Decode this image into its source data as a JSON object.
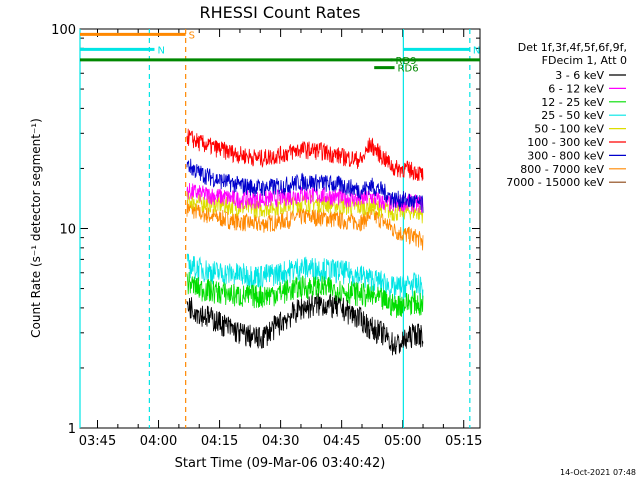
{
  "chart_data": {
    "type": "line",
    "title": "RHESSI Count Rates",
    "xlabel": "Start Time (09-Mar-06 03:40:42)",
    "ylabel": "Count Rate (s⁻¹ detector segment⁻¹)",
    "y_scale": "log",
    "ylim": [
      1,
      100
    ],
    "xlim": [
      "03:40:42",
      "05:19:00"
    ],
    "x_ticks": [
      "03:45",
      "04:00",
      "04:15",
      "04:30",
      "04:45",
      "05:00",
      "05:15"
    ],
    "y_ticks": [
      "1",
      "10",
      "100"
    ],
    "data_span": [
      "04:07:00",
      "05:06:00"
    ],
    "legend_header": [
      "Det 1f,3f,4f,5f,6f,9f,",
      "FDecim 1, Att 0"
    ],
    "series": [
      {
        "name": "3 - 6 keV",
        "color": "#000000",
        "x": [
          "04:07",
          "04:10",
          "04:15",
          "04:20",
          "04:25",
          "04:30",
          "04:35",
          "04:40",
          "04:45",
          "04:50",
          "04:52",
          "04:55",
          "04:58",
          "05:00",
          "05:03",
          "05:05"
        ],
        "y": [
          4.2,
          3.8,
          3.4,
          3.0,
          2.8,
          3.4,
          4.0,
          4.2,
          4.0,
          3.5,
          3.2,
          3.0,
          2.6,
          2.7,
          3.0,
          2.9
        ]
      },
      {
        "name": "6 - 12 keV",
        "color": "#ff00ff",
        "x": [
          "04:07",
          "04:10",
          "04:15",
          "04:20",
          "04:25",
          "04:30",
          "04:35",
          "04:40",
          "04:45",
          "04:50",
          "04:52",
          "04:55",
          "04:58",
          "05:00",
          "05:03",
          "05:05"
        ],
        "y": [
          15.5,
          15.0,
          14.5,
          14.0,
          14.0,
          14.3,
          14.8,
          14.7,
          14.3,
          14.0,
          14.5,
          13.6,
          13.2,
          13.5,
          13.4,
          13.2
        ]
      },
      {
        "name": "12 - 25 keV",
        "color": "#00dd00",
        "x": [
          "04:07",
          "04:10",
          "04:15",
          "04:20",
          "04:25",
          "04:30",
          "04:35",
          "04:40",
          "04:45",
          "04:50",
          "04:52",
          "04:55",
          "04:58",
          "05:00",
          "05:03",
          "05:05"
        ],
        "y": [
          5.4,
          5.0,
          4.8,
          4.6,
          4.6,
          4.8,
          5.1,
          5.1,
          4.9,
          4.7,
          4.6,
          4.4,
          4.1,
          4.2,
          4.3,
          4.1
        ]
      },
      {
        "name": "25 - 50 keV",
        "color": "#00e5e5",
        "x": [
          "04:07",
          "04:10",
          "04:15",
          "04:20",
          "04:25",
          "04:30",
          "04:35",
          "04:40",
          "04:45",
          "04:50",
          "04:52",
          "04:55",
          "04:58",
          "05:00",
          "05:03",
          "05:05"
        ],
        "y": [
          6.6,
          6.3,
          6.0,
          5.9,
          5.8,
          6.0,
          6.4,
          6.3,
          6.1,
          5.8,
          5.6,
          5.4,
          5.0,
          5.2,
          5.3,
          5.0
        ]
      },
      {
        "name": "50 - 100 keV",
        "color": "#dddd00",
        "x": [
          "04:07",
          "04:10",
          "04:15",
          "04:20",
          "04:25",
          "04:30",
          "04:35",
          "04:40",
          "04:45",
          "04:50",
          "04:52",
          "04:55",
          "04:58",
          "05:00",
          "05:03",
          "05:05"
        ],
        "y": [
          14.0,
          13.5,
          13.2,
          12.8,
          12.6,
          13.0,
          13.5,
          13.4,
          13.0,
          12.8,
          13.0,
          12.6,
          12.0,
          12.3,
          12.2,
          11.8
        ]
      },
      {
        "name": "100 - 300 keV",
        "color": "#ff0000",
        "x": [
          "04:07",
          "04:10",
          "04:15",
          "04:20",
          "04:25",
          "04:30",
          "04:35",
          "04:40",
          "04:45",
          "04:50",
          "04:52",
          "04:55",
          "04:58",
          "05:00",
          "05:03",
          "05:05"
        ],
        "y": [
          29,
          27,
          25,
          23.5,
          22.5,
          23.5,
          25,
          24.5,
          23,
          22,
          26.5,
          23,
          20,
          20,
          19.5,
          18.5
        ]
      },
      {
        "name": "300 - 800 keV",
        "color": "#0000cc",
        "x": [
          "04:07",
          "04:10",
          "04:15",
          "04:20",
          "04:25",
          "04:30",
          "04:35",
          "04:40",
          "04:45",
          "04:50",
          "04:52",
          "04:55",
          "04:58",
          "05:00",
          "05:03",
          "05:05"
        ],
        "y": [
          21,
          19,
          17.5,
          16.5,
          16,
          16.3,
          17.2,
          17,
          16.5,
          15.5,
          16.5,
          15.5,
          14,
          14,
          13.6,
          13.2
        ]
      },
      {
        "name": "800 - 7000 keV",
        "color": "#ff8800",
        "x": [
          "04:07",
          "04:10",
          "04:15",
          "04:20",
          "04:25",
          "04:30",
          "04:35",
          "04:40",
          "04:45",
          "04:50",
          "04:52",
          "04:55",
          "04:58",
          "05:00",
          "05:03",
          "05:05"
        ],
        "y": [
          12.8,
          12.0,
          11.3,
          10.8,
          10.5,
          10.9,
          11.5,
          11.4,
          11.0,
          10.8,
          11.8,
          11.0,
          9.8,
          9.4,
          9.1,
          8.6
        ]
      },
      {
        "name": "7000 - 15000 keV",
        "color": "#8b4513",
        "x": [],
        "y": []
      }
    ],
    "flag_bars": [
      {
        "label": "S",
        "color": "#ff8800",
        "start": "03:40:42",
        "end": "04:06:40",
        "y": 94
      },
      {
        "label": "N",
        "color": "#00e5e5",
        "start": "03:40:42",
        "end": "03:59:00",
        "y": 79
      },
      {
        "label": "N",
        "color": "#00e5e5",
        "start": "05:00:10",
        "end": "05:16:30",
        "y": 79
      },
      {
        "label": "",
        "color": "#008800",
        "start": "03:40:42",
        "end": "05:19:00",
        "y": 70
      },
      {
        "label": "RD6",
        "color": "#008800",
        "start": "04:53:00",
        "end": "04:58:00",
        "y": 64
      },
      {
        "label": "RD9",
        "color": "#008800",
        "start": "04:57:00",
        "end": "04:57:30",
        "y": 70
      }
    ],
    "vlines": [
      {
        "time": "03:40:42",
        "color": "#00e5e5",
        "dashed": false
      },
      {
        "time": "03:57:45",
        "color": "#00e5e5",
        "dashed": true
      },
      {
        "time": "04:06:40",
        "color": "#ff8800",
        "dashed": true
      },
      {
        "time": "05:00:10",
        "color": "#00e5e5",
        "dashed": false
      },
      {
        "time": "05:16:30",
        "color": "#00e5e5",
        "dashed": true
      }
    ]
  },
  "footer_timestamp": "14-Oct-2021 07:48"
}
